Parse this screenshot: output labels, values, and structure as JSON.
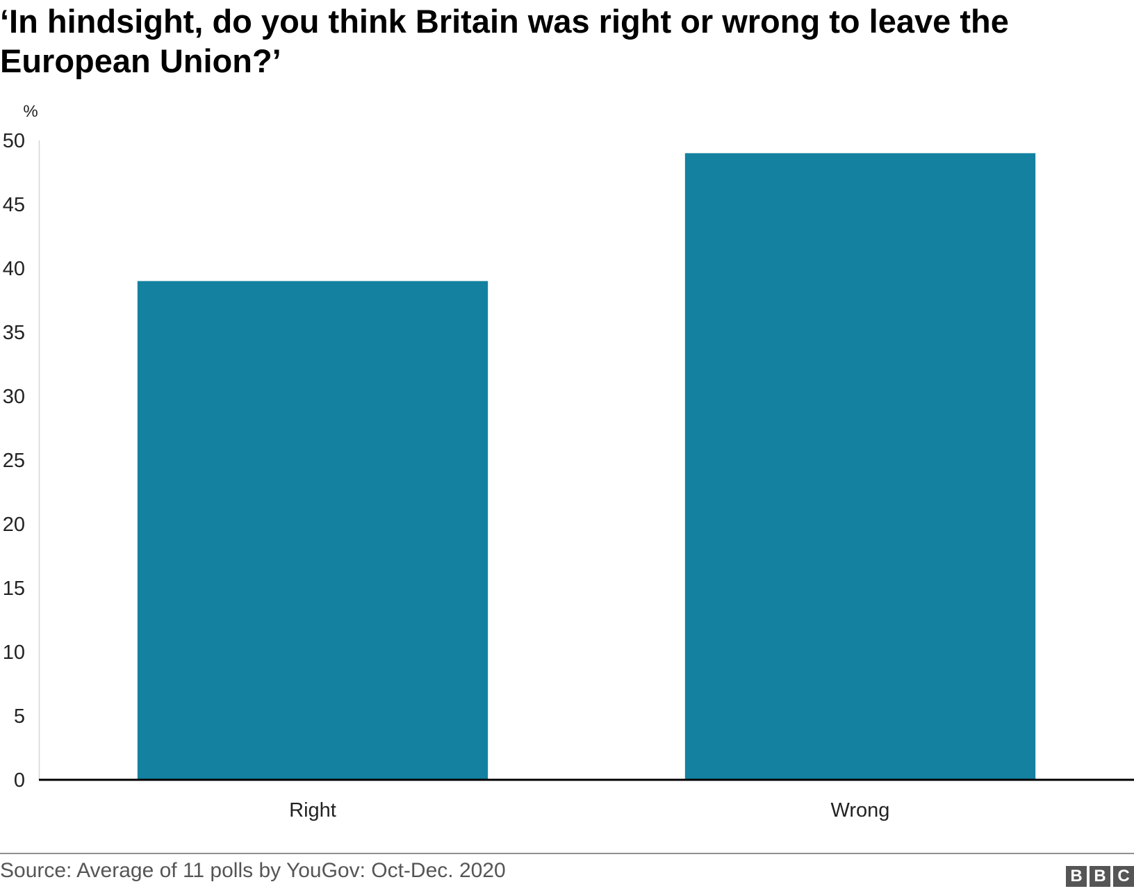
{
  "chart_data": {
    "type": "bar",
    "title": "‘In hindsight, do you think Britain was right or wrong to leave the European Union?’",
    "ylabel": "%",
    "xlabel": "",
    "categories": [
      "Right",
      "Wrong"
    ],
    "values": [
      39,
      49
    ],
    "ylim": [
      0,
      50
    ],
    "yticks": [
      "0",
      "5",
      "10",
      "15",
      "20",
      "25",
      "30",
      "35",
      "40",
      "45",
      "50"
    ],
    "grid": false,
    "bar_color": "#13819f"
  },
  "footer": {
    "source": "Source: Average of 11 polls by YouGov: Oct-Dec. 2020",
    "logo": [
      "B",
      "B",
      "C"
    ]
  }
}
